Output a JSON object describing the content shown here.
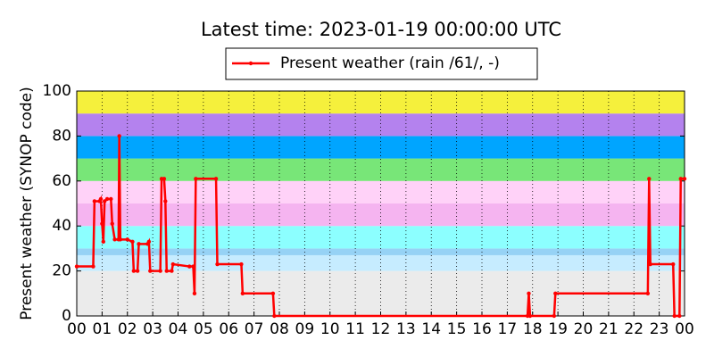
{
  "chart_data": {
    "type": "line",
    "title": "Latest time: 2023-01-19 00:00:00 UTC",
    "ylabel": "Present weather (SYNOP code)",
    "xlim": [
      0,
      24
    ],
    "xticks": [
      {
        "value": 0,
        "label": "00"
      },
      {
        "value": 1,
        "label": "01"
      },
      {
        "value": 2,
        "label": "02"
      },
      {
        "value": 3,
        "label": "03"
      },
      {
        "value": 4,
        "label": "04"
      },
      {
        "value": 5,
        "label": "05"
      },
      {
        "value": 6,
        "label": "06"
      },
      {
        "value": 7,
        "label": "07"
      },
      {
        "value": 8,
        "label": "08"
      },
      {
        "value": 9,
        "label": "09"
      },
      {
        "value": 10,
        "label": "10"
      },
      {
        "value": 11,
        "label": "11"
      },
      {
        "value": 12,
        "label": "12"
      },
      {
        "value": 13,
        "label": "13"
      },
      {
        "value": 14,
        "label": "14"
      },
      {
        "value": 15,
        "label": "15"
      },
      {
        "value": 16,
        "label": "16"
      },
      {
        "value": 17,
        "label": "17"
      },
      {
        "value": 18,
        "label": "18"
      },
      {
        "value": 19,
        "label": "19"
      },
      {
        "value": 20,
        "label": "20"
      },
      {
        "value": 21,
        "label": "21"
      },
      {
        "value": 22,
        "label": "22"
      },
      {
        "value": 23,
        "label": "23"
      },
      {
        "value": 24,
        "label": "00"
      }
    ],
    "ylim": [
      0,
      100
    ],
    "yticks": [
      0,
      20,
      40,
      60,
      80,
      100
    ],
    "grid": "x",
    "bands": [
      {
        "from": 0,
        "to": 20,
        "color": "#ebebeb"
      },
      {
        "from": 20,
        "to": 27,
        "color": "#c6ecff"
      },
      {
        "from": 27,
        "to": 30,
        "color": "#96d2f5"
      },
      {
        "from": 30,
        "to": 40,
        "color": "#8cffff"
      },
      {
        "from": 40,
        "to": 50,
        "color": "#f5b4f0"
      },
      {
        "from": 50,
        "to": 60,
        "color": "#ffd2f8"
      },
      {
        "from": 60,
        "to": 70,
        "color": "#78e678"
      },
      {
        "from": 70,
        "to": 80,
        "color": "#00a5ff"
      },
      {
        "from": 80,
        "to": 90,
        "color": "#b482ee"
      },
      {
        "from": 90,
        "to": 100,
        "color": "#f5f03c"
      }
    ],
    "legend": "top",
    "series": [
      {
        "name": "Present weather (rain /61/, -)",
        "color": "#ff0000",
        "x": [
          0,
          0.65,
          0.7,
          0.9,
          0.95,
          1.0,
          1.05,
          1.1,
          1.2,
          1.35,
          1.4,
          1.5,
          1.65,
          1.68,
          1.72,
          2.0,
          2.2,
          2.25,
          2.4,
          2.45,
          2.8,
          2.85,
          2.9,
          3.3,
          3.35,
          3.45,
          3.5,
          3.55,
          3.75,
          3.8,
          4.45,
          4.6,
          4.65,
          4.7,
          5.5,
          5.55,
          6.5,
          6.55,
          7.75,
          7.8,
          17.8,
          17.85,
          17.9,
          18.85,
          18.9,
          22.55,
          22.6,
          22.65,
          23.55,
          23.6,
          23.8,
          23.85,
          24
        ],
        "values": [
          22,
          22,
          51,
          51,
          52,
          41,
          33,
          51,
          52,
          52,
          41,
          34,
          34,
          80,
          34,
          34,
          33,
          20,
          20,
          32,
          32,
          33,
          20,
          20,
          61,
          61,
          51,
          20,
          20,
          23,
          22,
          22,
          10,
          61,
          61,
          23,
          23,
          10,
          10,
          0,
          0,
          10,
          0,
          0,
          10,
          10,
          61,
          23,
          23,
          0,
          0,
          61,
          61
        ]
      }
    ]
  }
}
